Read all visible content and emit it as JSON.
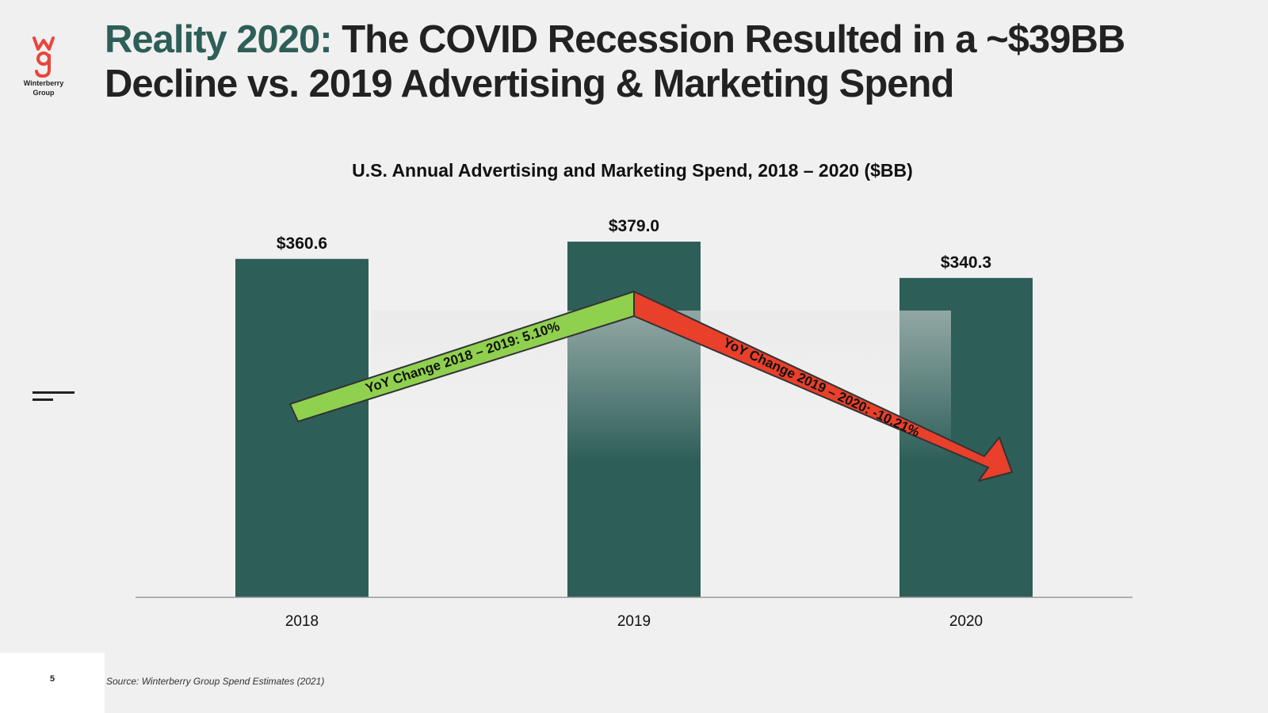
{
  "brand": {
    "logo_text_line1": "Winterberry",
    "logo_text_line2": "Group",
    "accent_color": "#2e5e58",
    "logo_color": "#e8453c"
  },
  "slide": {
    "title_accent": "Reality 2020:",
    "title_main": " The COVID Recession Resulted in a ~$39BB Decline vs. 2019 Advertising & Marketing Spend",
    "page_number": "5",
    "source": "Source: Winterberry Group Spend Estimates (2021)"
  },
  "chart_data": {
    "type": "bar",
    "title": "U.S. Annual Advertising and Marketing Spend, 2018 – 2020 ($BB)",
    "categories": [
      "2018",
      "2019",
      "2020"
    ],
    "values": [
      360.6,
      379.0,
      340.3
    ],
    "value_labels": [
      "$360.6",
      "$379.0",
      "$340.3"
    ],
    "bar_color": "#2e5e58",
    "xlabel": "",
    "ylabel": "",
    "ylim": [
      0,
      379.0
    ],
    "annotations": [
      {
        "text": "YoY Change 2018 – 2019: 5.10%",
        "color": "#8fd14f",
        "direction": "up"
      },
      {
        "text": "YoY Change 2019 – 2020: -10.21%",
        "color": "#e8402a",
        "direction": "down"
      }
    ]
  }
}
